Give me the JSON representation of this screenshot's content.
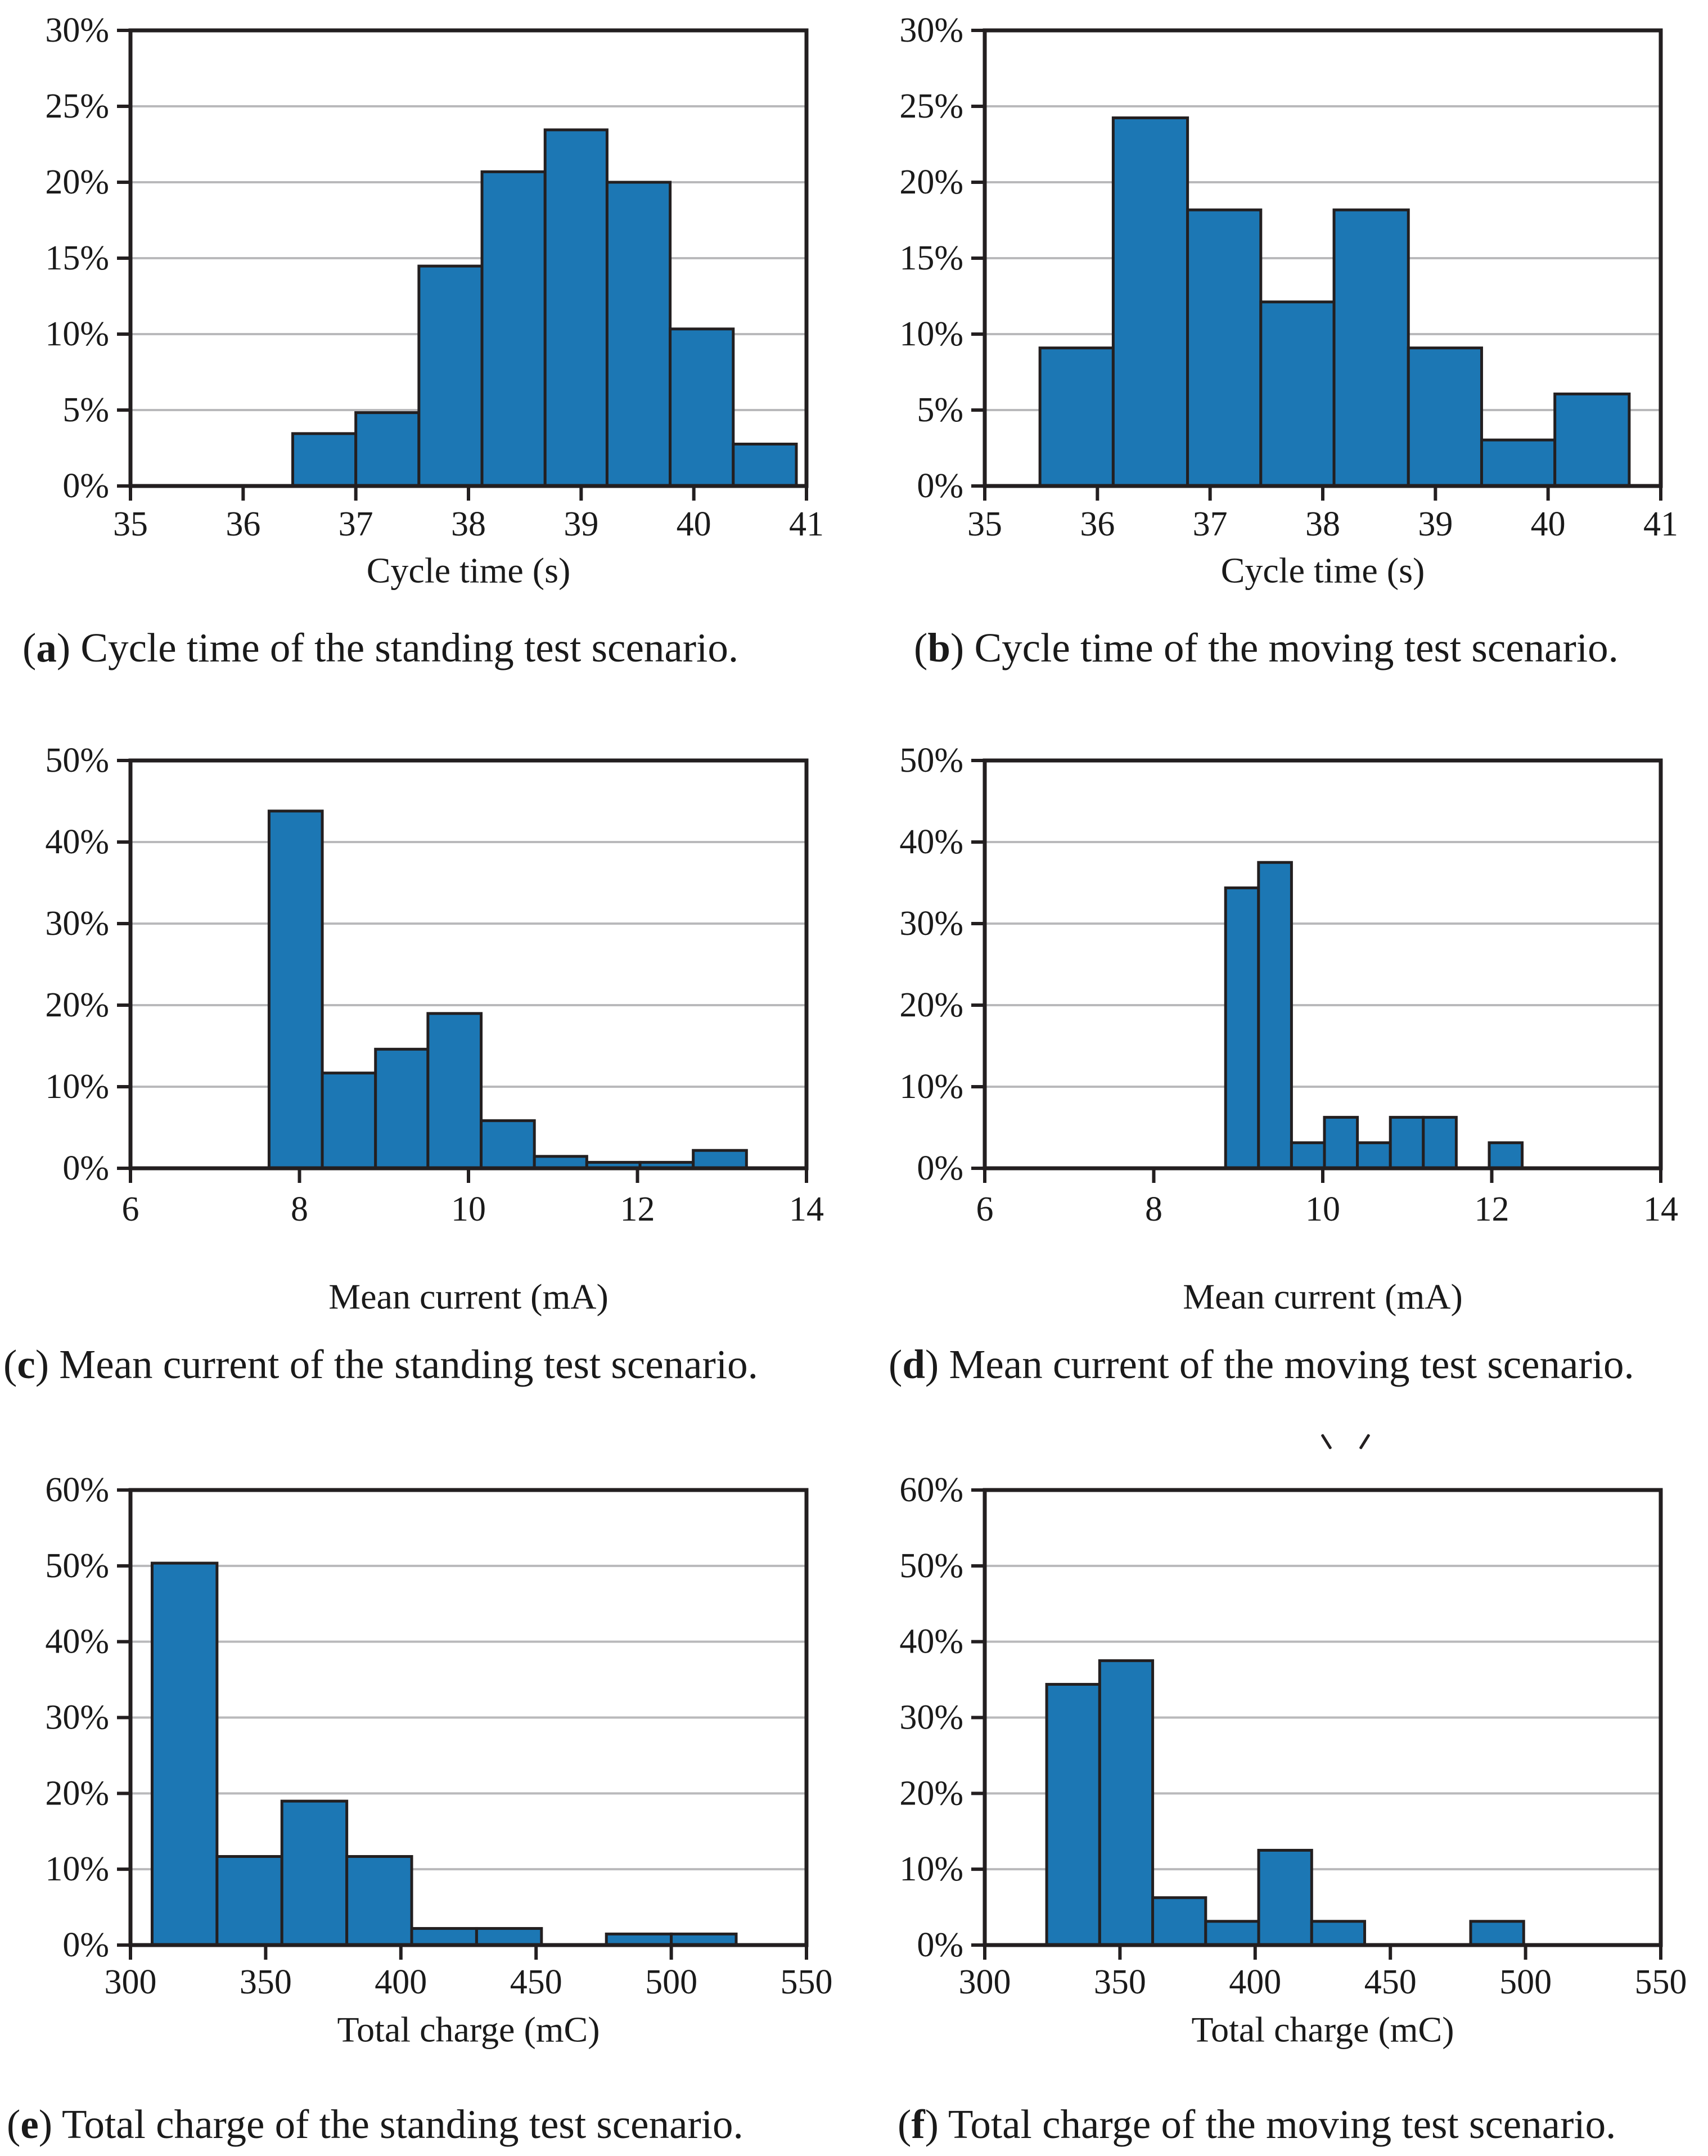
{
  "colors": {
    "bar_fill": "#1c77b4",
    "bar_edge": "#231f20",
    "axis": "#231f20",
    "grid": "#b9b9bb",
    "text": "#1a1a1a",
    "background": "#ffffff"
  },
  "icons": {
    "stray_marks": "two small diagonal pen-mark artifacts above panel f"
  },
  "chart_data": [
    {
      "panel": "a",
      "type": "histogram",
      "caption": {
        "open": "(",
        "label": "a",
        "close": ") ",
        "text": "Cycle time of the standing test scenario."
      },
      "xlabel": "Cycle time (s)",
      "x_range": [
        35,
        41
      ],
      "x_ticks": [
        35,
        36,
        37,
        38,
        39,
        40,
        41
      ],
      "y_range_pct": [
        0,
        30
      ],
      "y_tick_step_pct": 5,
      "y_tick_labels": [
        "0%",
        "5%",
        "10%",
        "15%",
        "20%",
        "25%",
        "30%"
      ],
      "grid": true,
      "bin_edges": [
        36.44,
        37.0,
        37.56,
        38.12,
        38.68,
        39.23,
        39.79,
        40.35,
        40.91
      ],
      "bar_heights_pct": [
        3.45,
        4.83,
        14.48,
        20.69,
        23.45,
        20.0,
        10.34,
        2.76
      ]
    },
    {
      "panel": "b",
      "type": "histogram",
      "caption": {
        "open": "(",
        "label": "b",
        "close": ") ",
        "text": "Cycle time of the moving test scenario."
      },
      "xlabel": "Cycle time (s)",
      "x_range": [
        35,
        41
      ],
      "x_ticks": [
        35,
        36,
        37,
        38,
        39,
        40,
        41
      ],
      "y_range_pct": [
        0,
        30
      ],
      "y_tick_step_pct": 5,
      "y_tick_labels": [
        "0%",
        "5%",
        "10%",
        "15%",
        "20%",
        "25%",
        "30%"
      ],
      "grid": true,
      "bin_edges": [
        35.49,
        36.14,
        36.8,
        37.45,
        38.1,
        38.76,
        39.41,
        40.06,
        40.72
      ],
      "bar_heights_pct": [
        9.09,
        24.24,
        18.18,
        12.12,
        18.18,
        9.09,
        3.03,
        6.06
      ]
    },
    {
      "panel": "c",
      "type": "histogram",
      "caption": {
        "open": "(",
        "label": "c",
        "close": ") ",
        "text": "Mean current of the standing test scenario."
      },
      "xlabel": "Mean current (mA)",
      "x_range": [
        6,
        14
      ],
      "x_ticks": [
        6,
        8,
        10,
        12,
        14
      ],
      "y_range_pct": [
        0,
        50
      ],
      "y_tick_step_pct": 10,
      "y_tick_labels": [
        "0%",
        "10%",
        "20%",
        "30%",
        "40%",
        "50%"
      ],
      "grid": true,
      "bin_edges": [
        7.64,
        8.27,
        8.9,
        9.52,
        10.15,
        10.78,
        11.4,
        12.03,
        12.66,
        13.29
      ],
      "bar_heights_pct": [
        43.8,
        11.68,
        14.6,
        18.98,
        5.84,
        1.46,
        0.73,
        0.73,
        2.19
      ]
    },
    {
      "panel": "d",
      "type": "histogram",
      "caption": {
        "open": "(",
        "label": "d",
        "close": ") ",
        "text": "Mean current of the moving test scenario."
      },
      "xlabel": "Mean current (mA)",
      "x_range": [
        6,
        14
      ],
      "x_ticks": [
        6,
        8,
        10,
        12,
        14
      ],
      "y_range_pct": [
        0,
        50
      ],
      "y_tick_step_pct": 10,
      "y_tick_labels": [
        "0%",
        "10%",
        "20%",
        "30%",
        "40%",
        "50%"
      ],
      "grid": true,
      "bin_edges": [
        8.85,
        9.24,
        9.63,
        10.02,
        10.41,
        10.8,
        11.19,
        11.58,
        11.97,
        12.36
      ],
      "bar_heights_pct": [
        34.38,
        37.5,
        3.13,
        6.25,
        3.13,
        6.25,
        6.25,
        0,
        3.13
      ]
    },
    {
      "panel": "e",
      "type": "histogram",
      "caption": {
        "open": "(",
        "label": "e",
        "close": ") ",
        "text": "Total charge of the standing test scenario."
      },
      "xlabel": "Total charge (mC)",
      "x_range": [
        300,
        550
      ],
      "x_ticks": [
        300,
        350,
        400,
        450,
        500,
        550
      ],
      "y_range_pct": [
        0,
        60
      ],
      "y_tick_step_pct": 10,
      "y_tick_labels": [
        "0%",
        "10%",
        "20%",
        "30%",
        "40%",
        "50%",
        "60%"
      ],
      "grid": true,
      "bin_edges": [
        308,
        332,
        356,
        380,
        404,
        428,
        452,
        476,
        500,
        524
      ],
      "bar_heights_pct": [
        50.36,
        11.68,
        18.98,
        11.68,
        2.19,
        2.19,
        0,
        1.46,
        1.46
      ]
    },
    {
      "panel": "f",
      "type": "histogram",
      "caption": {
        "open": "(",
        "label": "f",
        "close": ") ",
        "text": "Total charge of the moving test scenario."
      },
      "xlabel": "Total charge (mC)",
      "x_range": [
        300,
        550
      ],
      "x_ticks": [
        300,
        350,
        400,
        450,
        500,
        550
      ],
      "y_range_pct": [
        0,
        60
      ],
      "y_tick_step_pct": 10,
      "y_tick_labels": [
        "0%",
        "10%",
        "20%",
        "30%",
        "40%",
        "50%",
        "60%"
      ],
      "grid": true,
      "bin_edges": [
        322.9,
        342.5,
        362.1,
        381.7,
        401.3,
        420.9,
        440.5,
        460.1,
        479.7,
        499.3
      ],
      "bar_heights_pct": [
        34.38,
        37.5,
        6.25,
        3.13,
        12.5,
        3.13,
        0,
        0,
        3.13
      ]
    }
  ]
}
